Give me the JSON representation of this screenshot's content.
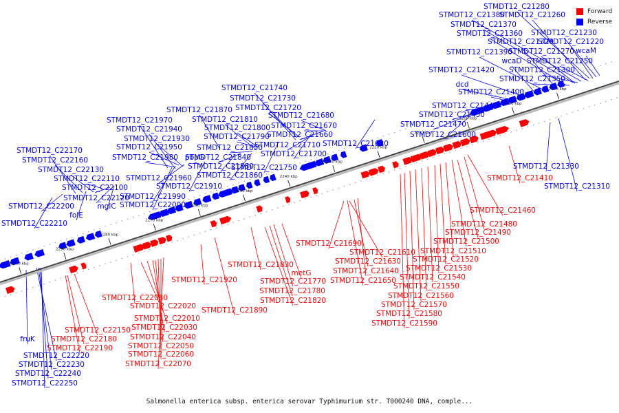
{
  "caption": "Salmonella enterica subsp. enterica serovar Typhimurium str. T000240 DNA, comple...",
  "legend": [
    {
      "label": "Forward",
      "color": "#ff0000"
    },
    {
      "label": "Reverse",
      "color": "#0000ff"
    }
  ],
  "colors": {
    "forward": "#ff0000",
    "reverse": "#0000ff",
    "axis": "#777777"
  },
  "kbp_ticks": [
    "2180 kbp",
    "2190 kbp",
    "2200 kbp",
    "2210 kbp",
    "2220 kbp",
    "2230 kbp",
    "2240 kbp",
    "2250 kbp",
    "2260 kbp",
    "2270 kbp",
    "2280 kbp",
    "2290 kbp",
    "2300 kbp"
  ],
  "reverse_labels": [
    "STMDT12_C21280",
    "STMDT12_C21380",
    "STMDT12_C21260",
    "STMDT12_C21370",
    "STMDT12_C21360",
    "STMDT12_C21230",
    "STMDT12_C21320",
    "STMDT12_C21220",
    "STMDT12_C21390",
    "STMDT12_C21270",
    "wcaM",
    "wcaD",
    "STMDT12_C21250",
    "STMDT12_C21420",
    "STMDT12_C21300",
    "STMDT12_C21350",
    "dcd",
    "STMDT12_C21400",
    "STMDT12_C21440",
    "STMDT12_C21450",
    "STMDT12_C21470",
    "STMDT12_C21600",
    "STMDT12_C21620",
    "STMDT12_C21740",
    "STMDT12_C21730",
    "STMDT12_C21720",
    "STMDT12_C21680",
    "STMDT12_C21870",
    "STMDT12_C21810",
    "STMDT12_C21670",
    "STMDT12_C21970",
    "STMDT12_C21800",
    "STMDT12_C21660",
    "STMDT12_C21940",
    "STMDT12_C21790",
    "STMDT12_C21930",
    "STMDT12_C21710",
    "STMDT12_C21950",
    "STMDT12_C21850",
    "STMDT12_C21700",
    "STMDT12_C22170",
    "STMDT12_C21980",
    "pbpG",
    "STMDT12_C21840",
    "STMDT12_C22160",
    "STMDT12_C21880",
    "STMDT12_C21750",
    "STMDT12_C22130",
    "STMDT12_C21860",
    "STMDT12_C21960",
    "STMDT12_C22110",
    "STMDT12_C21910",
    "STMDT12_C22100",
    "STMDT12_C21990",
    "STMDT12_C22120",
    "STMDT12_C22000",
    "STMDT12_C22200",
    "mglC",
    "folE",
    "STMDT12_C22210",
    "STMDT12_C21330",
    "STMDT12_C21310",
    "fruK",
    "STMDT12_C22220",
    "STMDT12_C22230",
    "STMDT12_C22240",
    "STMDT12_C22250"
  ],
  "forward_labels": [
    "STMDT12_C21410",
    "STMDT12_C21460",
    "STMDT12_C21480",
    "STMDT12_C21490",
    "STMDT12_C21500",
    "STMDT12_C21690",
    "STMDT12_C21510",
    "STMDT12_C21610",
    "STMDT12_C21520",
    "STMDT12_C21630",
    "STMDT12_C21530",
    "STMDT12_C21640",
    "STMDT12_C21540",
    "STMDT12_C21650",
    "STMDT12_C21550",
    "STMDT12_C21560",
    "STMDT12_C21570",
    "STMDT12_C21580",
    "STMDT12_C21590",
    "STMDT12_C21830",
    "metG",
    "STMDT12_C21770",
    "STMDT12_C21780",
    "STMDT12_C21820",
    "STMDT12_C21890",
    "STMDT12_C21920",
    "STMDT12_C22080",
    "STMDT12_C22020",
    "STMDT12_C22010",
    "STMDT12_C22030",
    "STMDT12_C22040",
    "STMDT12_C22050",
    "STMDT12_C22060",
    "STMDT12_C22070",
    "STMDT12_C22150",
    "STMDT12_C22180",
    "STMDT12_C22190"
  ]
}
